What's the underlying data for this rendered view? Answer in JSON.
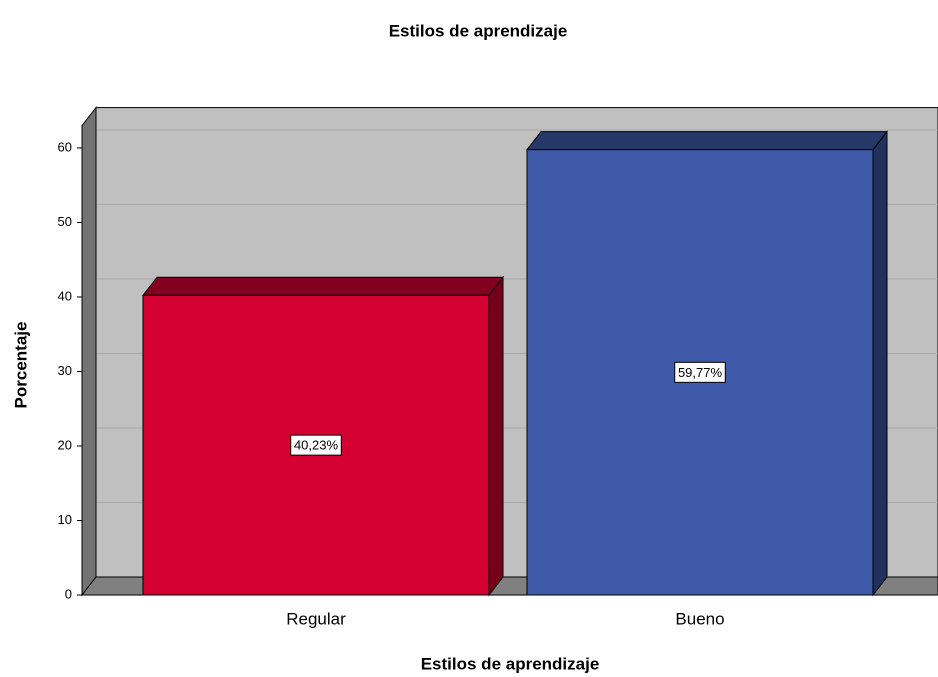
{
  "chart_data": {
    "type": "bar3d",
    "title": "Estilos de aprendizaje",
    "x_label": "Estilos de aprendizaje",
    "y_label": "Porcentaje",
    "categories": [
      "Regular",
      "Bueno"
    ],
    "values": [
      40.23,
      59.77
    ],
    "value_labels": [
      "40,23%",
      "59,77%"
    ],
    "colors": [
      "#d50032",
      "#3e5aa8"
    ],
    "ylim": [
      0,
      63
    ],
    "yticks": [
      0,
      10,
      20,
      30,
      40,
      50,
      60
    ],
    "grid": true
  }
}
